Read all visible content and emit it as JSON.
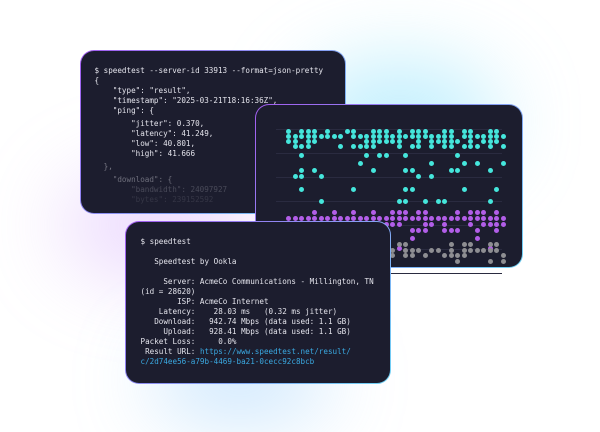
{
  "json_card": {
    "command": "$ speedtest --server-id 33913 --format=json-pretty",
    "lines": [
      "{",
      "    \"type\": \"result\",",
      "    \"timestamp\": \"2025-03-21T18:16:36Z\",",
      "    \"ping\": {",
      "        \"jitter\": 0.370,",
      "        \"latency\": 41.249,",
      "        \"low\": 40.801,",
      "        \"high\": 41.666",
      "  },",
      "    \"download\": {",
      "        \"bandwidth\": 24097927",
      "        \"bytes\": 239152592"
    ]
  },
  "dot_chart": {
    "colors": {
      "cyan": "#45e6dc",
      "purple": "#b25ee8",
      "gray": "#8e8e92"
    }
  },
  "cli_card": {
    "command": "$ speedtest",
    "title": "   Speedtest by Ookla",
    "server_line": "     Server: AcmeCo Communications - Millington, TN",
    "server_id": "(id = 28620)",
    "isp": "        ISP: AcmeCo Internet",
    "latency": "    Latency:    28.03 ms   (0.32 ms jitter)",
    "download": "   Download:   942.74 Mbps (data used: 1.1 GB)",
    "upload": "     Upload:   928.41 Mbps (data used: 1.1 GB)",
    "packet_loss": "Packet Loss:     0.0%",
    "result_label": " Result URL: ",
    "result_url_1": "https://www.speedtest.net/result/",
    "result_url_2": "c/2d74ee56-a79b-4469-ba21-0cecc92c8bcb"
  }
}
